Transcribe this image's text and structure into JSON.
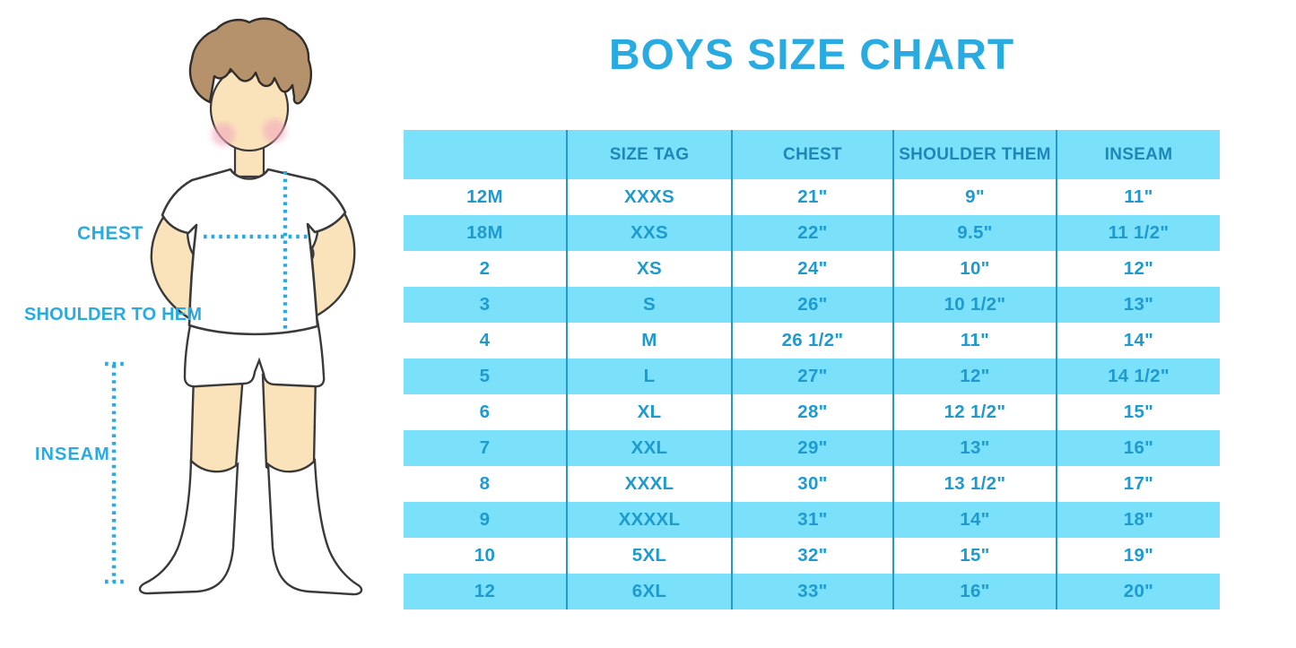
{
  "title": "BOYS SIZE CHART",
  "figure_labels": {
    "chest": "CHEST",
    "shoulder_to_hem": "SHOULDER TO HEM",
    "inseam": "INSEAM"
  },
  "chart_data": {
    "type": "table",
    "title": "BOYS SIZE CHART",
    "columns": [
      "",
      "SIZE TAG",
      "CHEST",
      "SHOULDER THEM",
      "INSEAM"
    ],
    "rows": [
      [
        "12M",
        "XXXS",
        "21\"",
        "9\"",
        "11\""
      ],
      [
        "18M",
        "XXS",
        "22\"",
        "9.5\"",
        "11 1/2\""
      ],
      [
        "2",
        "XS",
        "24\"",
        "10\"",
        "12\""
      ],
      [
        "3",
        "S",
        "26\"",
        "10 1/2\"",
        "13\""
      ],
      [
        "4",
        "M",
        "26 1/2\"",
        "11\"",
        "14\""
      ],
      [
        "5",
        "L",
        "27\"",
        "12\"",
        "14 1/2\""
      ],
      [
        "6",
        "XL",
        "28\"",
        "12 1/2\"",
        "15\""
      ],
      [
        "7",
        "XXL",
        "29\"",
        "13\"",
        "16\""
      ],
      [
        "8",
        "XXXL",
        "30\"",
        "13 1/2\"",
        "17\""
      ],
      [
        "9",
        "XXXXL",
        "31\"",
        "14\"",
        "18\""
      ],
      [
        "10",
        "5XL",
        "32\"",
        "15\"",
        "19\""
      ],
      [
        "12",
        "6XL",
        "33\"",
        "16\"",
        "20\""
      ]
    ],
    "layout": {
      "stripe_rows": "header and every 2nd data row",
      "grid": "vertical dividers only, no horizontal lines"
    }
  },
  "colors": {
    "title_blue": "#29ABE2",
    "label_blue": "#29ABE2",
    "stripe_blue": "#7BE1FA",
    "divider_blue": "#2499CC",
    "header_text": "#1E86B8",
    "cell_text": "#1E9ACF",
    "dotted_line": "#29ABE2",
    "skin": "#FAE3BB",
    "hair": "#B5916C",
    "blush": "#F2A8BC",
    "outline": "#3A3A3A"
  }
}
